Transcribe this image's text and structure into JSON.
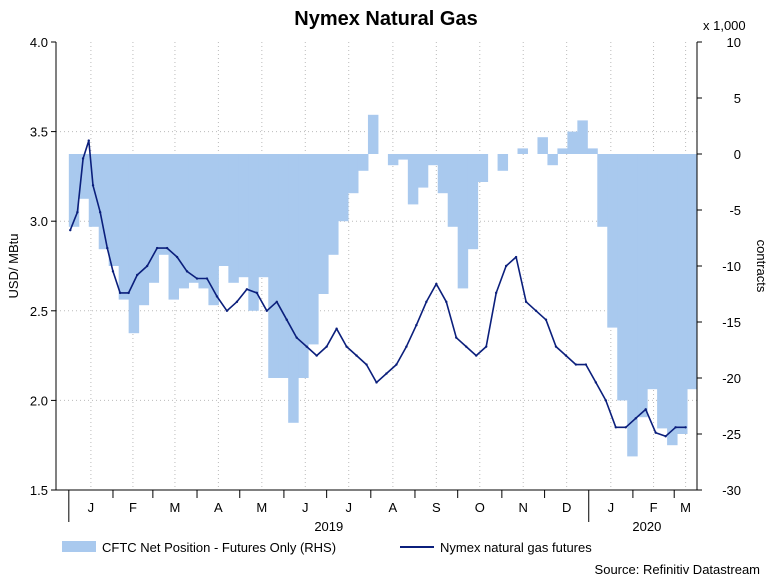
{
  "chart_data": {
    "type": "area+line",
    "title": "Nymex Natural Gas",
    "ylabel_left": "USD/ MBtu",
    "ylabel_right": "contracts",
    "right_axis_multiplier": "x 1,000",
    "source": "Source: Refinitiv Datastream",
    "ylim_left": [
      1.5,
      4.0
    ],
    "ylim_right": [
      -30,
      10
    ],
    "yticks_left": [
      "1.5",
      "2.0",
      "2.5",
      "3.0",
      "3.5",
      "4.0"
    ],
    "yticks_right": [
      "-30",
      "-25",
      "-20",
      "-15",
      "-10",
      "-5",
      "0",
      "5",
      "10"
    ],
    "months": [
      "J",
      "F",
      "M",
      "A",
      "M",
      "J",
      "J",
      "A",
      "S",
      "O",
      "N",
      "D",
      "J",
      "F",
      "M"
    ],
    "years": [
      "2019",
      "2020"
    ],
    "grid": true,
    "legend_position": "bottom",
    "series": [
      {
        "name": "CFTC Net Position - Futures Only (RHS)",
        "axis": "right",
        "type": "area",
        "color": "#a9c9ee",
        "x": [
          "2019-01-01",
          "2019-01-08",
          "2019-01-15",
          "2019-01-22",
          "2019-01-29",
          "2019-02-05",
          "2019-02-12",
          "2019-02-19",
          "2019-02-26",
          "2019-03-05",
          "2019-03-12",
          "2019-03-19",
          "2019-03-26",
          "2019-04-02",
          "2019-04-09",
          "2019-04-16",
          "2019-04-23",
          "2019-04-30",
          "2019-05-07",
          "2019-05-14",
          "2019-05-21",
          "2019-05-28",
          "2019-06-04",
          "2019-06-11",
          "2019-06-18",
          "2019-06-25",
          "2019-07-02",
          "2019-07-09",
          "2019-07-16",
          "2019-07-23",
          "2019-07-30",
          "2019-08-06",
          "2019-08-13",
          "2019-08-20",
          "2019-08-27",
          "2019-09-03",
          "2019-09-10",
          "2019-09-17",
          "2019-09-24",
          "2019-10-01",
          "2019-10-08",
          "2019-10-15",
          "2019-10-22",
          "2019-10-29",
          "2019-11-05",
          "2019-11-12",
          "2019-11-19",
          "2019-11-26",
          "2019-12-03",
          "2019-12-10",
          "2019-12-17",
          "2019-12-24",
          "2019-12-31",
          "2020-01-07",
          "2020-01-14",
          "2020-01-21",
          "2020-01-28",
          "2020-02-04",
          "2020-02-11",
          "2020-02-18",
          "2020-02-25",
          "2020-03-03",
          "2020-03-10"
        ],
        "values": [
          -6.5,
          -4.0,
          -6.5,
          -8.5,
          -10.0,
          -13.0,
          -16.0,
          -13.5,
          -11.5,
          -9.0,
          -13.0,
          -12.0,
          -11.5,
          -12.0,
          -13.5,
          -10.0,
          -11.5,
          -11.0,
          -14.0,
          -11.0,
          -20.0,
          -20.0,
          -24.0,
          -20.0,
          -17.0,
          -12.5,
          -9.0,
          -6.0,
          -3.5,
          -1.5,
          3.5,
          0.0,
          -1.0,
          -0.5,
          -4.5,
          -3.0,
          -1.0,
          -3.5,
          -6.5,
          -12.0,
          -8.5,
          -2.5,
          0.0,
          -1.5,
          0.0,
          0.5,
          0.0,
          1.5,
          -1.0,
          0.5,
          2.0,
          3.0,
          0.5,
          -6.5,
          -15.5,
          -22.0,
          -27.0,
          -23.5,
          -21.0,
          -24.5,
          -26.0,
          -25.0,
          -21.0
        ]
      },
      {
        "name": "Nymex natural gas futures",
        "axis": "left",
        "type": "line",
        "color": "#0b1f7c",
        "x": [
          "2019-01-02",
          "2019-01-07",
          "2019-01-11",
          "2019-01-15",
          "2019-01-18",
          "2019-01-23",
          "2019-01-28",
          "2019-02-01",
          "2019-02-06",
          "2019-02-12",
          "2019-02-18",
          "2019-02-25",
          "2019-03-04",
          "2019-03-11",
          "2019-03-18",
          "2019-03-25",
          "2019-04-01",
          "2019-04-08",
          "2019-04-15",
          "2019-04-22",
          "2019-04-29",
          "2019-05-06",
          "2019-05-13",
          "2019-05-20",
          "2019-05-27",
          "2019-06-03",
          "2019-06-10",
          "2019-06-17",
          "2019-06-24",
          "2019-07-01",
          "2019-07-08",
          "2019-07-15",
          "2019-07-22",
          "2019-07-29",
          "2019-08-05",
          "2019-08-12",
          "2019-08-19",
          "2019-08-26",
          "2019-09-02",
          "2019-09-09",
          "2019-09-16",
          "2019-09-23",
          "2019-09-30",
          "2019-10-07",
          "2019-10-14",
          "2019-10-21",
          "2019-10-28",
          "2019-11-04",
          "2019-11-11",
          "2019-11-18",
          "2019-11-25",
          "2019-12-02",
          "2019-12-09",
          "2019-12-16",
          "2019-12-23",
          "2019-12-30",
          "2020-01-06",
          "2020-01-13",
          "2020-01-20",
          "2020-01-27",
          "2020-02-03",
          "2020-02-10",
          "2020-02-17",
          "2020-02-24",
          "2020-03-02",
          "2020-03-09"
        ],
        "values": [
          2.95,
          3.05,
          3.35,
          3.45,
          3.2,
          3.05,
          2.85,
          2.72,
          2.6,
          2.6,
          2.7,
          2.75,
          2.85,
          2.85,
          2.8,
          2.72,
          2.68,
          2.68,
          2.58,
          2.5,
          2.55,
          2.62,
          2.6,
          2.5,
          2.55,
          2.45,
          2.35,
          2.3,
          2.25,
          2.3,
          2.4,
          2.3,
          2.25,
          2.2,
          2.1,
          2.15,
          2.2,
          2.3,
          2.42,
          2.55,
          2.65,
          2.55,
          2.35,
          2.3,
          2.25,
          2.3,
          2.6,
          2.75,
          2.8,
          2.55,
          2.5,
          2.45,
          2.3,
          2.25,
          2.2,
          2.2,
          2.1,
          2.0,
          1.85,
          1.85,
          1.9,
          1.95,
          1.82,
          1.8,
          1.85,
          1.85
        ]
      }
    ]
  }
}
